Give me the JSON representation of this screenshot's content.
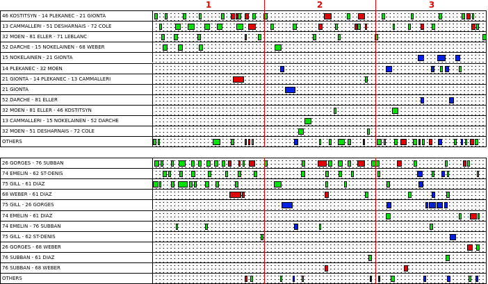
{
  "periods": [
    "1",
    "2",
    "3"
  ],
  "panel_top": {
    "rows": [
      {
        "label": "46 KOSTITSYN - 14 PLEKANEC - 21 GIONTA",
        "marks": [
          [
            "g",
            0.5,
            1.5
          ],
          [
            "g",
            3.6,
            4.4
          ],
          [
            "g",
            9,
            9.9
          ],
          [
            "g",
            13.8,
            14.6
          ],
          [
            "g",
            20.5,
            21.5
          ],
          [
            "r",
            23.4,
            24.6
          ],
          [
            "r",
            24.8,
            25.2
          ],
          [
            "g",
            25.5,
            26.4
          ],
          [
            "r",
            27.6,
            28.8
          ],
          [
            "g",
            29.8,
            30.8
          ],
          [
            "g",
            33.2,
            34.4
          ],
          [
            "r",
            51.2,
            53.6
          ],
          [
            "g",
            58.2,
            59.1
          ],
          [
            "r",
            61.5,
            63.5
          ],
          [
            "g",
            68.5,
            69.6
          ],
          [
            "g",
            77.2,
            78.2
          ],
          [
            "g",
            85.6,
            86.6
          ],
          [
            "g",
            92.6,
            93.6
          ],
          [
            "r",
            94,
            95.2
          ],
          [
            "g",
            95.6,
            96.3
          ]
        ]
      },
      {
        "label": "13 CAMMALLERI - 51 DESHARNAIS - 72 COLE",
        "marks": [
          [
            "g",
            1.8,
            2.7
          ],
          [
            "g",
            6.6,
            8.4
          ],
          [
            "g",
            10.5,
            12.4
          ],
          [
            "g",
            15.5,
            17
          ],
          [
            "g",
            19.2,
            20.8
          ],
          [
            "g",
            25,
            27
          ],
          [
            "r",
            28.6,
            30.8
          ],
          [
            "g",
            35.2,
            36.3
          ],
          [
            "g",
            41.8,
            43.2
          ],
          [
            "r",
            49.6,
            50.8
          ],
          [
            "g",
            54.5,
            55.5
          ],
          [
            "r",
            60.4,
            61.2
          ],
          [
            "g",
            61.3,
            62.2
          ],
          [
            "r",
            63.5,
            64.2
          ],
          [
            "g",
            71.8,
            72.6
          ],
          [
            "g",
            76.5,
            77.3
          ],
          [
            "r",
            80.2,
            81.3
          ],
          [
            "g",
            83.5,
            84.6
          ],
          [
            "r",
            95.5,
            96.6
          ],
          [
            "g",
            96.9,
            97.7
          ]
        ]
      },
      {
        "label": "32 MOEN - 81 ELLER - 71 LEBLANC",
        "marks": [
          [
            "g",
            2.4,
            3.6
          ],
          [
            "g",
            6.2,
            7.4
          ],
          [
            "g",
            13.4,
            14.4
          ],
          [
            "r",
            27.4,
            28.2
          ],
          [
            "g",
            31.5,
            32.5
          ],
          [
            "g",
            48,
            49
          ],
          [
            "g",
            55.4,
            56.3
          ],
          [
            "g",
            66.5,
            67.5
          ],
          [
            "g",
            98.7,
            100
          ]
        ]
      },
      {
        "label": "52 DARCHE - 15 NOKELAINEN - 68 WEBER",
        "marks": [
          [
            "g",
            3,
            4.3
          ],
          [
            "g",
            7.6,
            9
          ],
          [
            "g",
            13.8,
            15
          ],
          [
            "g",
            36.5,
            38.5
          ]
        ]
      },
      {
        "label": "15 NOKELAINEN - 21 GIONTA",
        "marks": [
          [
            "b",
            79.4,
            81.3
          ],
          [
            "b",
            85.2,
            87.8
          ],
          [
            "b",
            90.6,
            92.1
          ]
        ]
      },
      {
        "label": "14 PLEKANEC - 32 MOEN",
        "marks": [
          [
            "b",
            38.2,
            39.3
          ],
          [
            "b",
            69.8,
            71.6
          ],
          [
            "b",
            83.4,
            84.4
          ],
          [
            "b",
            87.4,
            88.8
          ],
          [
            "g",
            86,
            86.8
          ],
          [
            "g",
            91.6,
            92.4
          ]
        ]
      },
      {
        "label": "21 GIONTA - 14 PLEKANEC - 13 CAMMALLERI",
        "marks": [
          [
            "r",
            24,
            27.3
          ],
          [
            "g",
            63.5,
            64.3
          ]
        ]
      },
      {
        "label": "21 GIONTA",
        "marks": [
          [
            "b",
            39.6,
            42.8
          ]
        ]
      },
      {
        "label": "52 DARCHE - 81 ELLER",
        "marks": [
          [
            "b",
            80.2,
            81.2
          ],
          [
            "b",
            88.8,
            90.2
          ]
        ]
      },
      {
        "label": "32 MOEN - 81 ELLER - 46 KOSTITSYN",
        "marks": [
          [
            "g",
            54.2,
            55.1
          ],
          [
            "g",
            71.6,
            73.5
          ]
        ]
      },
      {
        "label": "13 CAMMALLERI - 15 NOKELAINEN - 52 DARCHE",
        "marks": [
          [
            "g",
            45.4,
            47.5
          ]
        ]
      },
      {
        "label": "32 MOEN - 51 DESHARNAIS - 72 COLE",
        "marks": [
          [
            "g",
            43.6,
            45.3
          ],
          [
            "g",
            64.2,
            64.9
          ]
        ]
      },
      {
        "label": "OTHERS",
        "marks": [
          [
            "g",
            0,
            1
          ],
          [
            "g",
            1.4,
            2
          ],
          [
            "g",
            18,
            20.3
          ],
          [
            "g",
            23.3,
            24.3
          ],
          [
            "r",
            27.6,
            28.2
          ],
          [
            "r",
            28.5,
            28.9
          ],
          [
            "g",
            29.5,
            30.2
          ],
          [
            "b",
            42.2,
            43.6
          ],
          [
            "g",
            49.8,
            50.3
          ],
          [
            "g",
            52.7,
            53.6
          ],
          [
            "g",
            55.4,
            57.6
          ],
          [
            "g",
            58.3,
            59.4
          ],
          [
            "b",
            63,
            63.6
          ],
          [
            "g",
            67,
            68.6
          ],
          [
            "g",
            69.1,
            69.8
          ],
          [
            "g",
            72.2,
            73.3
          ],
          [
            "r",
            74.2,
            76
          ],
          [
            "g",
            78,
            79.2
          ],
          [
            "b",
            79.6,
            80.3
          ],
          [
            "g",
            80.6,
            81.5
          ],
          [
            "r",
            82.7,
            83.7
          ],
          [
            "b",
            85.4,
            86.6
          ],
          [
            "g",
            90.2,
            91
          ],
          [
            "b",
            92.3,
            92.8
          ],
          [
            "g",
            93.5,
            94.2
          ],
          [
            "r",
            95,
            96.2
          ],
          [
            "g",
            96.5,
            97.6
          ]
        ]
      }
    ]
  },
  "panel_bottom": {
    "rows": [
      {
        "label": "26 GORGES - 76 SUBBAN",
        "marks": [
          [
            "g",
            0.4,
            1.8
          ],
          [
            "g",
            2.2,
            3.2
          ],
          [
            "g",
            5.4,
            6.2
          ],
          [
            "g",
            7.8,
            9.7
          ],
          [
            "g",
            11.5,
            12.6
          ],
          [
            "g",
            13.6,
            14.6
          ],
          [
            "g",
            16,
            17.2
          ],
          [
            "g",
            18.4,
            19.6
          ],
          [
            "g",
            20.6,
            21.6
          ],
          [
            "r",
            22.4,
            23.6
          ],
          [
            "r",
            25.7,
            26.3
          ],
          [
            "g",
            26.8,
            27.6
          ],
          [
            "r",
            28.7,
            30.6
          ],
          [
            "g",
            33.3,
            34.3
          ],
          [
            "g",
            44.6,
            45.7
          ],
          [
            "r",
            49.4,
            52
          ],
          [
            "g",
            52.6,
            53.7
          ],
          [
            "g",
            55.5,
            56.8
          ],
          [
            "g",
            58.4,
            59.4
          ],
          [
            "r",
            61.2,
            63.5
          ],
          [
            "g",
            65.4,
            68
          ],
          [
            "r",
            73.2,
            74.6
          ],
          [
            "g",
            78.2,
            79.2
          ],
          [
            "g",
            87.6,
            88.4
          ],
          [
            "r",
            93,
            94
          ],
          [
            "g",
            94.2,
            95
          ]
        ]
      },
      {
        "label": "74 EMELIN - 62 ST-DENIS",
        "marks": [
          [
            "g",
            3,
            4.2
          ],
          [
            "g",
            4.6,
            5.4
          ],
          [
            "g",
            8,
            9
          ],
          [
            "g",
            11.5,
            12.7
          ],
          [
            "g",
            16.4,
            17.5
          ],
          [
            "g",
            21.6,
            22.6
          ],
          [
            "g",
            25.4,
            26.4
          ],
          [
            "g",
            30.3,
            31.2
          ],
          [
            "g",
            44.4,
            45.6
          ],
          [
            "g",
            51.6,
            52.8
          ],
          [
            "g",
            55.6,
            56.6
          ],
          [
            "g",
            59.4,
            60.2
          ],
          [
            "g",
            67.2,
            68.2
          ],
          [
            "b",
            79.2,
            80.8
          ],
          [
            "g",
            83.6,
            84.4
          ],
          [
            "b",
            86.4,
            87.6
          ],
          [
            "g",
            88.1,
            88.8
          ],
          [
            "g",
            97,
            97.8
          ]
        ]
      },
      {
        "label": "75 GILL - 61 DIAZ",
        "marks": [
          [
            "g",
            0,
            1.6
          ],
          [
            "g",
            1.8,
            2.5
          ],
          [
            "g",
            5.4,
            6.4
          ],
          [
            "g",
            7.6,
            10.5
          ],
          [
            "g",
            10.8,
            11.8
          ],
          [
            "g",
            12.3,
            13.2
          ],
          [
            "g",
            15.6,
            16.8
          ],
          [
            "g",
            18.8,
            19.7
          ],
          [
            "g",
            24.6,
            25.6
          ],
          [
            "g",
            36.2,
            38.5
          ],
          [
            "g",
            51.6,
            52.4
          ],
          [
            "g",
            57.3,
            58.2
          ],
          [
            "g",
            70,
            71
          ],
          [
            "b",
            79.6,
            81
          ]
        ]
      },
      {
        "label": "68 WEBER - 61 DIAZ",
        "marks": [
          [
            "r",
            23,
            26.5
          ],
          [
            "r",
            26.7,
            27.5
          ],
          [
            "r",
            51.5,
            52.7
          ],
          [
            "g",
            63.5,
            64.5
          ],
          [
            "g",
            76.5,
            77.5
          ],
          [
            "b",
            83.5,
            84.5
          ],
          [
            "g",
            88,
            89
          ]
        ]
      },
      {
        "label": "75 GILL - 26 GORGES",
        "marks": [
          [
            "b",
            38.5,
            41.8
          ],
          [
            "b",
            70,
            71.5
          ],
          [
            "b",
            81.6,
            82.5
          ],
          [
            "b",
            82.8,
            84.8
          ],
          [
            "b",
            85,
            86.8
          ],
          [
            "b",
            87.3,
            88.4
          ]
        ]
      },
      {
        "label": "74 EMELIN - 61 DIAZ",
        "marks": [
          [
            "g",
            69.8,
            71.2
          ],
          [
            "g",
            91.6,
            92.6
          ],
          [
            "r",
            95,
            97
          ],
          [
            "g",
            97.2,
            98
          ]
        ]
      },
      {
        "label": "74 EMELIN - 76 SUBBAN",
        "marks": [
          [
            "g",
            6.8,
            7.5
          ],
          [
            "g",
            15.6,
            16.4
          ],
          [
            "b",
            42.3,
            43.6
          ],
          [
            "g",
            49.8,
            50.5
          ],
          [
            "g",
            83,
            84
          ]
        ]
      },
      {
        "label": "75 GILL - 62 ST-DENIS",
        "marks": [
          [
            "g",
            32.3,
            33.2
          ],
          [
            "b",
            89,
            90.8
          ]
        ]
      },
      {
        "label": "26 GORGES - 68 WEBER",
        "marks": [
          [
            "r",
            94.2,
            95.8
          ],
          [
            "g",
            96.8,
            98
          ]
        ]
      },
      {
        "label": "76 SUBBAN - 61 DIAZ",
        "marks": [
          [
            "g",
            64.5,
            65.7
          ],
          [
            "g",
            87.8,
            89
          ]
        ]
      },
      {
        "label": "76 SUBBAN - 68 WEBER",
        "marks": [
          [
            "r",
            51.4,
            52.5
          ],
          [
            "r",
            75.2,
            76.4
          ]
        ]
      },
      {
        "label": "OTHERS",
        "marks": [
          [
            "r",
            27.6,
            28.3
          ],
          [
            "g",
            29.2,
            30
          ],
          [
            "g",
            38.1,
            38.7
          ],
          [
            "b",
            41.8,
            42.5
          ],
          [
            "g",
            44.6,
            45.2
          ],
          [
            "b",
            65,
            65.6
          ],
          [
            "b",
            67.6,
            68.2
          ],
          [
            "g",
            71.2,
            72.4
          ],
          [
            "b",
            81.1,
            81.8
          ],
          [
            "b",
            88.2,
            89.1
          ],
          [
            "g",
            94.6,
            95.5
          ],
          [
            "b",
            96.6,
            97.6
          ]
        ]
      }
    ]
  },
  "colors": {
    "green": "#00e000",
    "red": "#e00000",
    "blue": "#0020e0",
    "period_line": "#e00000"
  },
  "legend_note": ""
}
